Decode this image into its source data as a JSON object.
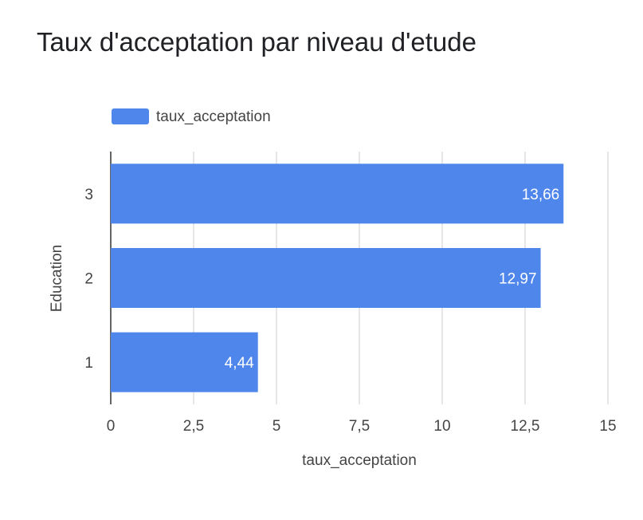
{
  "chart_data": {
    "type": "bar",
    "orientation": "horizontal",
    "title": "Taux d'acceptation par niveau d'etude",
    "xlabel": "taux_acceptation",
    "ylabel": "Education",
    "categories": [
      "3",
      "2",
      "1"
    ],
    "series": [
      {
        "name": "taux_acceptation",
        "values": [
          13.66,
          12.97,
          4.44
        ],
        "data_labels": [
          "13,66",
          "12,97",
          "4,44"
        ],
        "color": "#4f86ec"
      }
    ],
    "xlim": [
      0,
      15
    ],
    "xticks": [
      0,
      2.5,
      5,
      7.5,
      10,
      12.5,
      15
    ],
    "xtick_labels": [
      "0",
      "2,5",
      "5",
      "7,5",
      "10",
      "12,5",
      "15"
    ],
    "grid": true,
    "legend_position": "top-left"
  }
}
